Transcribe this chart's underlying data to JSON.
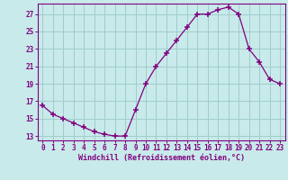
{
  "x": [
    0,
    1,
    2,
    3,
    4,
    5,
    6,
    7,
    8,
    9,
    10,
    11,
    12,
    13,
    14,
    15,
    16,
    17,
    18,
    19,
    20,
    21,
    22,
    23
  ],
  "y": [
    16.5,
    15.5,
    15.0,
    14.5,
    14.0,
    13.5,
    13.2,
    13.0,
    13.0,
    16.0,
    19.0,
    21.0,
    22.5,
    24.0,
    25.5,
    27.0,
    27.0,
    27.5,
    27.8,
    27.0,
    23.0,
    21.5,
    19.5,
    19.0
  ],
  "line_color": "#800080",
  "marker_color": "#800080",
  "bg_color": "#c8eaea",
  "grid_color": "#a0cccc",
  "xlabel": "Windchill (Refroidissement éolien,°C)",
  "yticks": [
    13,
    15,
    17,
    19,
    21,
    23,
    25,
    27
  ],
  "xlim": [
    -0.5,
    23.5
  ],
  "ylim": [
    12.5,
    28.2
  ],
  "font_color": "#800080",
  "spine_color": "#800080",
  "tick_fontsize": 5.5,
  "xlabel_fontsize": 6.0
}
